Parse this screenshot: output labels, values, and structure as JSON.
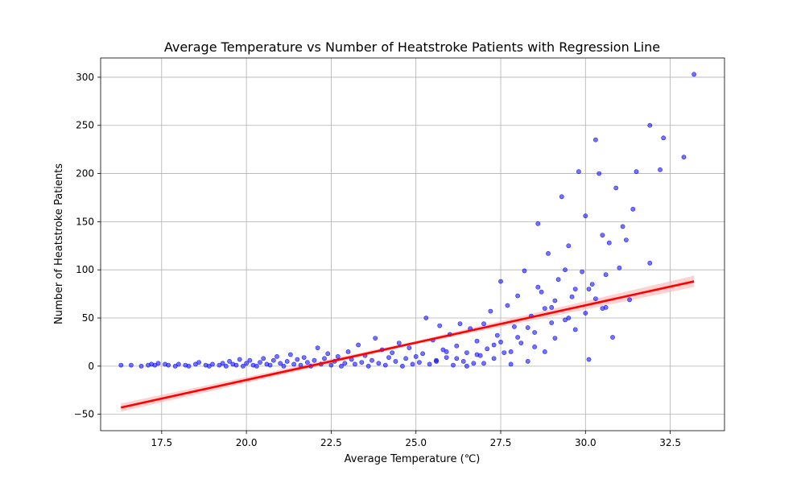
{
  "chart_data": {
    "type": "scatter",
    "title": "Average Temperature vs Number of Heatstroke Patients with Regression Line",
    "xlabel": "Average Temperature (℃)",
    "ylabel": "Number of Heatstroke Patients",
    "xlim": [
      15.7,
      34.1
    ],
    "ylim": [
      -67,
      320
    ],
    "xticks": [
      17.5,
      20.0,
      22.5,
      25.0,
      27.5,
      30.0,
      32.5
    ],
    "xtick_labels": [
      "17.5",
      "20.0",
      "22.5",
      "25.0",
      "27.5",
      "30.0",
      "32.5"
    ],
    "yticks": [
      -50,
      0,
      50,
      100,
      150,
      200,
      250,
      300
    ],
    "ytick_labels": [
      "−50",
      "0",
      "50",
      "100",
      "150",
      "200",
      "250",
      "300"
    ],
    "grid": true,
    "colors": {
      "points": "#0000ff",
      "regression_line": "#ff0000",
      "confidence_band": "#ffb0b0",
      "grid": "#b0b0b0"
    },
    "regression": {
      "x_start": 16.3,
      "y_start": -43,
      "x_end": 33.2,
      "y_end": 88
    },
    "points": [
      [
        16.3,
        1
      ],
      [
        16.6,
        1
      ],
      [
        16.9,
        0
      ],
      [
        17.1,
        1
      ],
      [
        17.2,
        2
      ],
      [
        17.3,
        1
      ],
      [
        17.4,
        3
      ],
      [
        17.6,
        2
      ],
      [
        17.7,
        1
      ],
      [
        17.9,
        0
      ],
      [
        18.0,
        2
      ],
      [
        18.2,
        1
      ],
      [
        18.3,
        0
      ],
      [
        18.5,
        2
      ],
      [
        18.6,
        4
      ],
      [
        18.8,
        1
      ],
      [
        18.9,
        0
      ],
      [
        19.0,
        2
      ],
      [
        19.2,
        1
      ],
      [
        19.3,
        3
      ],
      [
        19.4,
        0
      ],
      [
        19.5,
        5
      ],
      [
        19.6,
        2
      ],
      [
        19.7,
        1
      ],
      [
        19.8,
        7
      ],
      [
        19.9,
        0
      ],
      [
        20.0,
        3
      ],
      [
        20.1,
        6
      ],
      [
        20.2,
        1
      ],
      [
        20.3,
        0
      ],
      [
        20.4,
        4
      ],
      [
        20.5,
        8
      ],
      [
        20.6,
        2
      ],
      [
        20.7,
        1
      ],
      [
        20.8,
        6
      ],
      [
        20.9,
        10
      ],
      [
        21.0,
        3
      ],
      [
        21.1,
        0
      ],
      [
        21.2,
        5
      ],
      [
        21.3,
        12
      ],
      [
        21.4,
        2
      ],
      [
        21.5,
        7
      ],
      [
        21.6,
        1
      ],
      [
        21.7,
        9
      ],
      [
        21.8,
        4
      ],
      [
        21.9,
        0
      ],
      [
        22.0,
        6
      ],
      [
        22.1,
        19
      ],
      [
        22.2,
        2
      ],
      [
        22.3,
        8
      ],
      [
        22.4,
        13
      ],
      [
        22.5,
        1
      ],
      [
        22.6,
        5
      ],
      [
        22.7,
        10
      ],
      [
        22.8,
        0
      ],
      [
        22.9,
        3
      ],
      [
        23.0,
        15
      ],
      [
        23.1,
        7
      ],
      [
        23.2,
        2
      ],
      [
        23.3,
        22
      ],
      [
        23.4,
        4
      ],
      [
        23.5,
        11
      ],
      [
        23.6,
        0
      ],
      [
        23.7,
        6
      ],
      [
        23.8,
        29
      ],
      [
        23.9,
        3
      ],
      [
        24.0,
        17
      ],
      [
        24.1,
        1
      ],
      [
        24.2,
        9
      ],
      [
        24.3,
        14
      ],
      [
        24.4,
        5
      ],
      [
        24.5,
        24
      ],
      [
        24.6,
        0
      ],
      [
        24.7,
        8
      ],
      [
        24.8,
        19
      ],
      [
        24.9,
        2
      ],
      [
        25.0,
        10
      ],
      [
        25.1,
        4
      ],
      [
        25.2,
        13
      ],
      [
        25.3,
        50
      ],
      [
        25.4,
        2
      ],
      [
        25.5,
        27
      ],
      [
        25.6,
        6
      ],
      [
        25.7,
        42
      ],
      [
        25.8,
        17
      ],
      [
        25.9,
        9
      ],
      [
        26.0,
        33
      ],
      [
        26.1,
        1
      ],
      [
        26.2,
        21
      ],
      [
        26.3,
        44
      ],
      [
        26.4,
        5
      ],
      [
        26.5,
        14
      ],
      [
        26.6,
        39
      ],
      [
        26.7,
        3
      ],
      [
        26.8,
        26
      ],
      [
        26.9,
        11
      ],
      [
        27.0,
        44
      ],
      [
        27.1,
        18
      ],
      [
        27.2,
        57
      ],
      [
        27.3,
        8
      ],
      [
        27.4,
        32
      ],
      [
        27.5,
        88
      ],
      [
        27.6,
        14
      ],
      [
        27.7,
        63
      ],
      [
        27.8,
        2
      ],
      [
        27.9,
        41
      ],
      [
        28.0,
        73
      ],
      [
        28.1,
        24
      ],
      [
        28.2,
        99
      ],
      [
        28.3,
        5
      ],
      [
        28.4,
        52
      ],
      [
        28.5,
        35
      ],
      [
        28.6,
        148
      ],
      [
        28.7,
        77
      ],
      [
        28.8,
        15
      ],
      [
        28.9,
        117
      ],
      [
        29.0,
        61
      ],
      [
        29.1,
        29
      ],
      [
        29.2,
        90
      ],
      [
        29.3,
        176
      ],
      [
        29.4,
        48
      ],
      [
        29.5,
        125
      ],
      [
        29.6,
        72
      ],
      [
        29.7,
        38
      ],
      [
        29.8,
        202
      ],
      [
        29.9,
        98
      ],
      [
        30.0,
        156
      ],
      [
        30.1,
        7
      ],
      [
        30.2,
        85
      ],
      [
        30.3,
        235
      ],
      [
        30.4,
        200
      ],
      [
        30.5,
        136
      ],
      [
        30.6,
        61
      ],
      [
        30.7,
        128
      ],
      [
        30.8,
        30
      ],
      [
        30.9,
        185
      ],
      [
        31.0,
        102
      ],
      [
        31.1,
        145
      ],
      [
        31.2,
        131
      ],
      [
        31.3,
        69
      ],
      [
        31.4,
        163
      ],
      [
        31.5,
        202
      ],
      [
        31.9,
        250
      ],
      [
        31.9,
        107
      ],
      [
        32.2,
        204
      ],
      [
        32.3,
        237
      ],
      [
        32.9,
        217
      ],
      [
        33.2,
        303
      ],
      [
        26.5,
        0
      ],
      [
        27.0,
        3
      ],
      [
        27.5,
        25
      ],
      [
        28.0,
        30
      ],
      [
        28.5,
        20
      ],
      [
        29.0,
        45
      ],
      [
        29.5,
        50
      ],
      [
        30.0,
        55
      ],
      [
        30.5,
        60
      ],
      [
        28.3,
        40
      ],
      [
        27.8,
        15
      ],
      [
        26.8,
        12
      ],
      [
        29.7,
        80
      ],
      [
        30.3,
        70
      ],
      [
        28.8,
        60
      ],
      [
        27.3,
        22
      ],
      [
        26.2,
        8
      ],
      [
        25.6,
        5
      ],
      [
        25.9,
        15
      ],
      [
        29.4,
        100
      ],
      [
        30.1,
        80
      ],
      [
        30.6,
        95
      ],
      [
        29.1,
        68
      ],
      [
        28.6,
        82
      ]
    ]
  }
}
